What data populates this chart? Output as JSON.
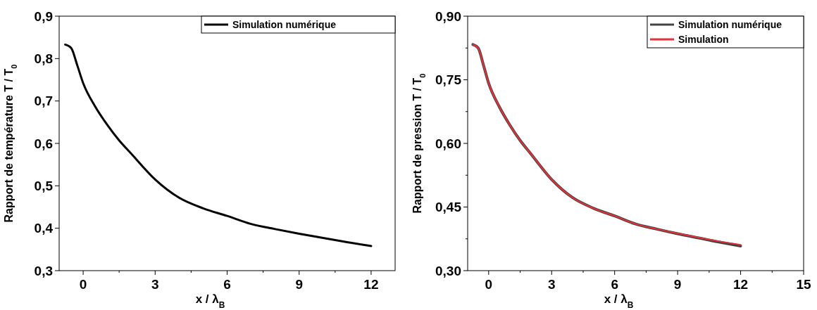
{
  "chart_data": [
    {
      "type": "line",
      "xlabel": "x / λ$_{B}$",
      "ylabel": "Rapport de température T / T$_{0}$",
      "xlim": [
        -1,
        13
      ],
      "ylim": [
        0.3,
        0.9
      ],
      "xticks": [
        0,
        {
          "value": 1.5,
          "label": null
        },
        3,
        {
          "value": 4.5,
          "label": null
        },
        6,
        {
          "value": 7.5,
          "label": null
        },
        9,
        {
          "value": 10.5,
          "label": null
        },
        12
      ],
      "yticks": [
        {
          "value": 0.3,
          "label": "0,3"
        },
        {
          "value": 0.4,
          "label": "0,4"
        },
        {
          "value": 0.5,
          "label": "0,5"
        },
        {
          "value": 0.6,
          "label": "0,6"
        },
        {
          "value": 0.7,
          "label": "0,7"
        },
        {
          "value": 0.8,
          "label": "0,8"
        },
        {
          "value": 0.9,
          "label": "0,9"
        }
      ],
      "legend": "top right",
      "grid": false,
      "marker": "none",
      "line_style": "solid",
      "x": [
        -0.75,
        -0.5,
        -0.25,
        0,
        0.5,
        1,
        1.5,
        2,
        3,
        4,
        5,
        6,
        7,
        8,
        9,
        10,
        11,
        12
      ],
      "series": [
        {
          "name": "Simulation numérique",
          "color": "#000000",
          "values": [
            0.833,
            0.825,
            0.785,
            0.742,
            0.687,
            0.644,
            0.607,
            0.576,
            0.515,
            0.472,
            0.447,
            0.429,
            0.41,
            0.398,
            0.387,
            0.377,
            0.367,
            0.358
          ]
        }
      ]
    },
    {
      "type": "line",
      "xlabel": "x / λ$_{B}$",
      "ylabel": "Rapport de pression T / T$_{0}$",
      "xlim": [
        -1,
        15
      ],
      "ylim": [
        0.3,
        0.9
      ],
      "xticks": [
        0,
        {
          "value": 1.5,
          "label": null
        },
        3,
        {
          "value": 4.5,
          "label": null
        },
        6,
        {
          "value": 7.5,
          "label": null
        },
        9,
        {
          "value": 10.5,
          "label": null
        },
        12,
        {
          "value": 13.5,
          "label": null
        },
        15
      ],
      "yticks": [
        {
          "value": 0.3,
          "label": "0,30"
        },
        {
          "value": 0.375,
          "label": null
        },
        {
          "value": 0.45,
          "label": "0,45"
        },
        {
          "value": 0.525,
          "label": null
        },
        {
          "value": 0.6,
          "label": "0,60"
        },
        {
          "value": 0.675,
          "label": null
        },
        {
          "value": 0.75,
          "label": "0,75"
        },
        {
          "value": 0.825,
          "label": null
        },
        {
          "value": 0.9,
          "label": "0,90"
        }
      ],
      "legend": "top right",
      "grid": false,
      "marker": "none",
      "line_style": "solid",
      "x": [
        -0.75,
        -0.5,
        -0.25,
        0,
        0.5,
        1,
        1.5,
        2,
        3,
        4,
        5,
        6,
        7,
        8,
        9,
        10,
        11,
        12
      ],
      "series": [
        {
          "name": "Simulation numérique",
          "color": "#444444",
          "values": [
            0.833,
            0.825,
            0.785,
            0.742,
            0.687,
            0.644,
            0.607,
            0.576,
            0.515,
            0.472,
            0.447,
            0.429,
            0.41,
            0.398,
            0.387,
            0.377,
            0.367,
            0.358
          ]
        },
        {
          "name": "Simulation",
          "color": "#e8303a",
          "values": [
            0.833,
            0.825,
            0.785,
            0.742,
            0.687,
            0.644,
            0.607,
            0.576,
            0.515,
            0.472,
            0.447,
            0.429,
            0.41,
            0.398,
            0.388,
            0.378,
            0.369,
            0.361
          ]
        }
      ]
    }
  ]
}
